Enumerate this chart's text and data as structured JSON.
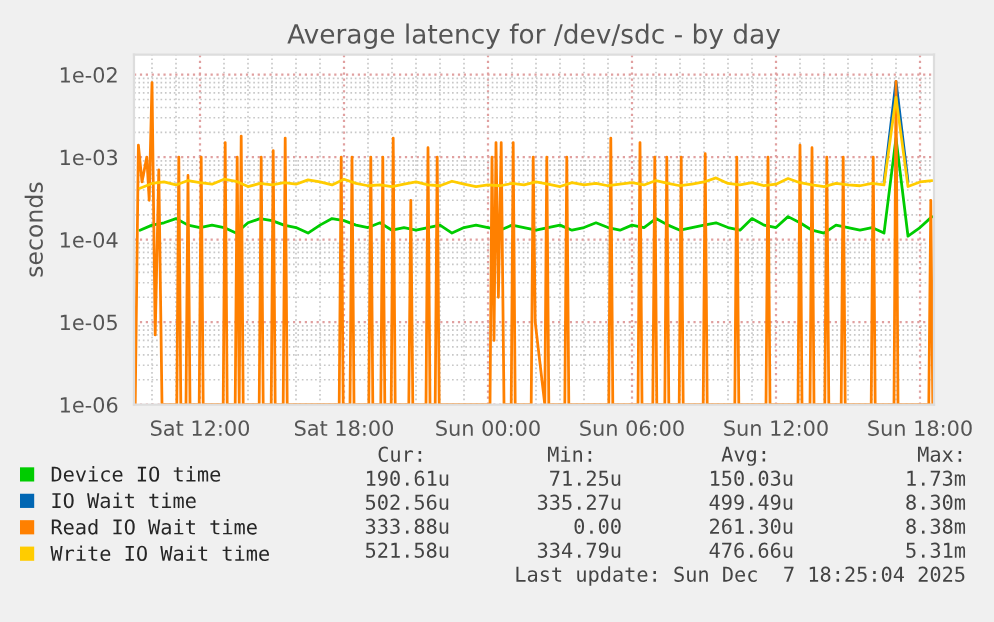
{
  "chart_data": {
    "type": "line",
    "title": "Average latency for /dev/sdc - by day",
    "ylabel": "seconds",
    "log": "y",
    "grid": true,
    "legend": "bottom",
    "line_style": "solid",
    "marker": "none",
    "xlim": [
      "2025-12-06T09:15",
      "2025-12-07T18:35"
    ],
    "xticks": [
      {
        "value": "2025-12-06T12:00",
        "label": "Sat 12:00"
      },
      {
        "value": "2025-12-06T18:00",
        "label": "Sat 18:00"
      },
      {
        "value": "2025-12-07T00:00",
        "label": "Sun 00:00"
      },
      {
        "value": "2025-12-07T06:00",
        "label": "Sun 06:00"
      },
      {
        "value": "2025-12-07T12:00",
        "label": "Sun 12:00"
      },
      {
        "value": "2025-12-07T18:00",
        "label": "Sun 18:00"
      }
    ],
    "ylim": [
      1e-06,
      0.0175
    ],
    "yticks": [
      {
        "value": 1e-06,
        "label": "1e-06"
      },
      {
        "value": 1e-05,
        "label": "1e-05"
      },
      {
        "value": 0.0001,
        "label": "1e-04"
      },
      {
        "value": 0.001,
        "label": "1e-03"
      },
      {
        "value": 0.01,
        "label": "1e-02"
      }
    ],
    "x": [
      "2025-12-06T09:30",
      "2025-12-06T10:00",
      "2025-12-06T10:30",
      "2025-12-06T11:00",
      "2025-12-06T11:30",
      "2025-12-06T12:00",
      "2025-12-06T12:30",
      "2025-12-06T13:00",
      "2025-12-06T13:30",
      "2025-12-06T14:00",
      "2025-12-06T14:30",
      "2025-12-06T15:00",
      "2025-12-06T15:30",
      "2025-12-06T16:00",
      "2025-12-06T16:30",
      "2025-12-06T17:00",
      "2025-12-06T17:30",
      "2025-12-06T18:00",
      "2025-12-06T18:30",
      "2025-12-06T19:00",
      "2025-12-06T19:30",
      "2025-12-06T20:00",
      "2025-12-06T20:30",
      "2025-12-06T21:00",
      "2025-12-06T21:30",
      "2025-12-06T22:00",
      "2025-12-06T22:30",
      "2025-12-06T23:00",
      "2025-12-06T23:30",
      "2025-12-07T00:00",
      "2025-12-07T00:30",
      "2025-12-07T01:00",
      "2025-12-07T01:30",
      "2025-12-07T02:00",
      "2025-12-07T02:30",
      "2025-12-07T03:00",
      "2025-12-07T03:30",
      "2025-12-07T04:00",
      "2025-12-07T04:30",
      "2025-12-07T05:00",
      "2025-12-07T05:30",
      "2025-12-07T06:00",
      "2025-12-07T06:30",
      "2025-12-07T07:00",
      "2025-12-07T07:30",
      "2025-12-07T08:00",
      "2025-12-07T08:30",
      "2025-12-07T09:00",
      "2025-12-07T09:30",
      "2025-12-07T10:00",
      "2025-12-07T10:30",
      "2025-12-07T11:00",
      "2025-12-07T11:30",
      "2025-12-07T12:00",
      "2025-12-07T12:30",
      "2025-12-07T13:00",
      "2025-12-07T13:30",
      "2025-12-07T14:00",
      "2025-12-07T14:30",
      "2025-12-07T15:00",
      "2025-12-07T15:30",
      "2025-12-07T16:00",
      "2025-12-07T16:30",
      "2025-12-07T17:00",
      "2025-12-07T17:30",
      "2025-12-07T18:00",
      "2025-12-07T18:30"
    ],
    "series": [
      {
        "name": "Device IO time",
        "color": "#00cc00",
        "values": [
          0.00013,
          0.00015,
          0.00016,
          0.00018,
          0.00015,
          0.00014,
          0.00015,
          0.00014,
          0.00012,
          0.00016,
          0.00018,
          0.00017,
          0.00015,
          0.00014,
          0.00012,
          0.00015,
          0.00018,
          0.00017,
          0.00015,
          0.00014,
          0.00016,
          0.00013,
          0.00014,
          0.00013,
          0.00014,
          0.00015,
          0.00012,
          0.00014,
          0.00015,
          0.00014,
          0.00013,
          0.00015,
          0.00014,
          0.00013,
          0.00014,
          0.00015,
          0.00013,
          0.00014,
          0.00016,
          0.00014,
          0.00013,
          0.00015,
          0.00014,
          0.00018,
          0.00015,
          0.00013,
          0.00014,
          0.00015,
          0.00016,
          0.00014,
          0.00013,
          0.00018,
          0.00015,
          0.00014,
          0.00019,
          0.00016,
          0.00013,
          0.00012,
          0.00015,
          0.00014,
          0.00013,
          0.00014,
          0.00012,
          0.0017,
          0.00011,
          0.00014,
          0.00019
        ]
      },
      {
        "name": "IO Wait time",
        "color": "#0066b3",
        "x": [
          "2025-12-07T16:30",
          "2025-12-07T17:00",
          "2025-12-07T17:30"
        ],
        "values": [
          0.0005,
          0.0083,
          0.0005
        ]
      },
      {
        "name": "Read IO Wait time",
        "color": "#ff8000",
        "x": [
          "2025-12-06T09:18",
          "2025-12-06T09:26",
          "2025-12-06T09:35",
          "2025-12-06T09:47",
          "2025-12-06T09:53",
          "2025-12-06T10:00",
          "2025-12-06T10:08",
          "2025-12-06T10:17",
          "2025-12-06T10:25",
          "2025-12-06T11:02",
          "2025-12-06T11:07",
          "2025-12-06T11:12",
          "2025-12-06T11:25",
          "2025-12-06T11:30",
          "2025-12-06T11:35",
          "2025-12-06T11:58",
          "2025-12-06T12:03",
          "2025-12-06T12:08",
          "2025-12-06T12:58",
          "2025-12-06T13:03",
          "2025-12-06T13:08",
          "2025-12-06T13:28",
          "2025-12-06T13:33",
          "2025-12-06T13:38",
          "2025-12-06T13:43",
          "2025-12-06T13:48",
          "2025-12-06T14:28",
          "2025-12-06T14:33",
          "2025-12-06T14:38",
          "2025-12-06T14:58",
          "2025-12-06T15:03",
          "2025-12-06T15:08",
          "2025-12-06T15:28",
          "2025-12-06T15:33",
          "2025-12-06T15:38",
          "2025-12-06T17:48",
          "2025-12-06T17:53",
          "2025-12-06T17:58",
          "2025-12-06T18:15",
          "2025-12-06T18:20",
          "2025-12-06T18:25",
          "2025-12-06T19:02",
          "2025-12-06T19:07",
          "2025-12-06T19:12",
          "2025-12-06T19:32",
          "2025-12-06T19:37",
          "2025-12-06T19:42",
          "2025-12-06T19:58",
          "2025-12-06T20:03",
          "2025-12-06T20:08",
          "2025-12-06T20:42",
          "2025-12-06T20:47",
          "2025-12-06T20:52",
          "2025-12-06T21:25",
          "2025-12-06T21:30",
          "2025-12-06T21:35",
          "2025-12-06T21:48",
          "2025-12-06T21:53",
          "2025-12-06T21:58",
          "2025-12-07T00:05",
          "2025-12-07T00:10",
          "2025-12-07T00:15",
          "2025-12-07T00:20",
          "2025-12-07T00:26",
          "2025-12-07T00:33",
          "2025-12-07T00:40",
          "2025-12-07T00:58",
          "2025-12-07T01:03",
          "2025-12-07T01:08",
          "2025-12-07T01:48",
          "2025-12-07T01:53",
          "2025-12-07T01:58",
          "2025-12-07T02:22",
          "2025-12-07T02:27",
          "2025-12-07T02:32",
          "2025-12-07T03:12",
          "2025-12-07T03:17",
          "2025-12-07T03:22",
          "2025-12-07T05:02",
          "2025-12-07T05:07",
          "2025-12-07T05:12",
          "2025-12-07T06:15",
          "2025-12-07T06:20",
          "2025-12-07T06:25",
          "2025-12-07T06:52",
          "2025-12-07T06:57",
          "2025-12-07T07:02",
          "2025-12-07T07:22",
          "2025-12-07T07:27",
          "2025-12-07T07:32",
          "2025-12-07T07:58",
          "2025-12-07T08:03",
          "2025-12-07T08:08",
          "2025-12-07T08:58",
          "2025-12-07T09:03",
          "2025-12-07T09:08",
          "2025-12-07T10:17",
          "2025-12-07T10:22",
          "2025-12-07T10:27",
          "2025-12-07T11:35",
          "2025-12-07T11:40",
          "2025-12-07T11:45",
          "2025-12-07T12:55",
          "2025-12-07T13:00",
          "2025-12-07T13:05",
          "2025-12-07T13:25",
          "2025-12-07T13:30",
          "2025-12-07T13:35",
          "2025-12-07T14:02",
          "2025-12-07T14:07",
          "2025-12-07T14:12",
          "2025-12-07T14:43",
          "2025-12-07T14:48",
          "2025-12-07T14:53",
          "2025-12-07T15:58",
          "2025-12-07T16:03",
          "2025-12-07T16:08",
          "2025-12-07T16:55",
          "2025-12-07T17:00",
          "2025-12-07T17:05",
          "2025-12-07T18:22",
          "2025-12-07T18:27",
          "2025-12-07T18:32"
        ],
        "values": [
          1e-06,
          0.0014,
          0.0005,
          0.001,
          0.0003,
          0.008,
          7e-06,
          0.0007,
          1e-06,
          1e-06,
          0.001,
          1e-06,
          1e-06,
          0.0006,
          1e-06,
          1e-06,
          0.001,
          1e-06,
          1e-06,
          0.0015,
          1e-06,
          1e-06,
          0.001,
          1e-06,
          0.0018,
          1e-06,
          1e-06,
          0.001,
          1e-06,
          1e-06,
          0.0012,
          1e-06,
          1e-06,
          0.0017,
          1e-06,
          1e-06,
          0.001,
          1e-06,
          1e-06,
          0.001,
          1e-06,
          1e-06,
          0.001,
          1e-06,
          1e-06,
          0.001,
          1e-06,
          1e-06,
          0.0017,
          1e-06,
          1e-06,
          0.0003,
          1e-06,
          1e-06,
          0.0013,
          1e-06,
          1e-06,
          0.001,
          1e-06,
          1e-06,
          0.001,
          6e-06,
          0.0015,
          2e-05,
          0.0015,
          1e-06,
          1e-06,
          0.0015,
          1e-06,
          1e-06,
          0.001,
          1e-05,
          1e-06,
          0.001,
          1e-06,
          1e-06,
          0.001,
          1e-06,
          1e-06,
          0.0017,
          1e-06,
          1e-06,
          0.0015,
          1e-06,
          1e-06,
          0.001,
          1e-06,
          1e-06,
          0.001,
          1e-06,
          1e-06,
          0.001,
          1e-06,
          1e-06,
          0.0011,
          1e-06,
          1e-06,
          0.001,
          1e-06,
          1e-06,
          0.001,
          1e-06,
          1e-06,
          0.0014,
          1e-06,
          1e-06,
          0.0013,
          1e-06,
          1e-06,
          0.001,
          1e-06,
          1e-06,
          0.001,
          1e-06,
          1e-06,
          0.001,
          1e-06,
          1e-06,
          0.0083,
          1e-06,
          1e-06,
          0.0003,
          1e-06
        ]
      },
      {
        "name": "Write IO Wait time",
        "color": "#ffcc00",
        "values": [
          0.00042,
          0.00048,
          0.0005,
          0.00046,
          0.00052,
          0.00049,
          0.00047,
          0.00054,
          0.00051,
          0.00044,
          0.00048,
          0.00046,
          0.00049,
          0.00047,
          0.00053,
          0.0005,
          0.00046,
          0.00054,
          0.00048,
          0.00045,
          0.00046,
          0.00044,
          0.00047,
          0.0005,
          0.00046,
          0.00045,
          0.00051,
          0.00047,
          0.00044,
          0.00046,
          0.00045,
          0.00048,
          0.00046,
          0.0005,
          0.00047,
          0.00044,
          0.00049,
          0.00046,
          0.00048,
          0.00045,
          0.00047,
          0.00049,
          0.00046,
          0.00052,
          0.00048,
          0.00045,
          0.00047,
          0.0005,
          0.00056,
          0.00048,
          0.00046,
          0.00049,
          0.00045,
          0.00047,
          0.00055,
          0.00049,
          0.00046,
          0.00044,
          0.00048,
          0.00046,
          0.00045,
          0.00048,
          0.00046,
          0.0053,
          0.00044,
          0.0005,
          0.00052
        ]
      }
    ],
    "annotations": [
      "Cur:",
      "Min:",
      "Avg:",
      "Max:",
      "190.61u",
      "71.25u",
      "150.03u",
      "1.73m",
      "502.56u",
      "335.27u",
      "499.49u",
      "8.30m",
      "333.88u",
      "0.00",
      "261.30u",
      "8.38m",
      "521.58u",
      "334.79u",
      "476.66u",
      "5.31m",
      "Last update: Sun Dec  7 18:25:04 2025"
    ]
  }
}
